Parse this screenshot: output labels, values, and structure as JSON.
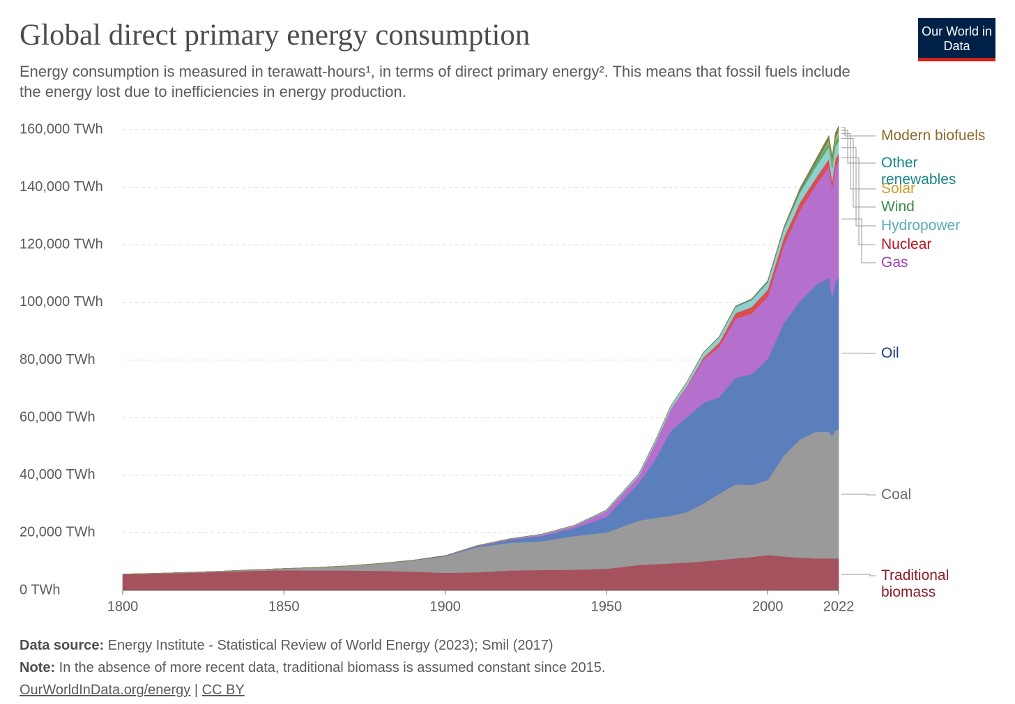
{
  "chart_data": {
    "type": "stacked_area",
    "title": "Global direct primary energy consumption",
    "subtitle": "Energy consumption is measured in terawatt-hours¹, in terms of direct primary energy². This means that fossil fuels include the energy lost due to inefficiencies in energy production.",
    "logo": "Our World in Data",
    "source_label": "Data source:",
    "source": "Energy Institute - Statistical Review of World Energy (2023); Smil (2017)",
    "note_label": "Note:",
    "note": "In the absence of more recent data, traditional biomass is assumed constant since 2015.",
    "link": "OurWorldInData.org/energy",
    "separator": "|",
    "license": "CC BY",
    "x": [
      1800,
      1810,
      1820,
      1830,
      1840,
      1850,
      1860,
      1870,
      1880,
      1890,
      1900,
      1910,
      1920,
      1930,
      1940,
      1950,
      1960,
      1965,
      1970,
      1975,
      1980,
      1985,
      1990,
      1995,
      2000,
      2005,
      2010,
      2015,
      2019,
      2020,
      2021,
      2022
    ],
    "xlim": [
      1800,
      2022
    ],
    "xticks": [
      1800,
      1850,
      1900,
      1950,
      2000,
      2022
    ],
    "ylim": [
      0,
      160000
    ],
    "yticks": [
      {
        "value": 0,
        "label": "0 TWh"
      },
      {
        "value": 20000,
        "label": "20,000 TWh"
      },
      {
        "value": 40000,
        "label": "40,000 TWh"
      },
      {
        "value": 60000,
        "label": "60,000 TWh"
      },
      {
        "value": 80000,
        "label": "80,000 TWh"
      },
      {
        "value": 100000,
        "label": "100,000 TWh"
      },
      {
        "value": 120000,
        "label": "120,000 TWh"
      },
      {
        "value": 140000,
        "label": "140,000 TWh"
      },
      {
        "value": 160000,
        "label": "160,000 TWh"
      }
    ],
    "grid": true,
    "series": [
      {
        "name": "Traditional biomass",
        "color": "#a5525e",
        "label_color": "#8c1c2a",
        "values": [
          5556,
          5800,
          6100,
          6400,
          6800,
          7000,
          6900,
          6900,
          6800,
          6500,
          6100,
          6300,
          6900,
          7100,
          7200,
          7500,
          8800,
          9100,
          9400,
          9700,
          10100,
          10600,
          11100,
          11600,
          12300,
          11800,
          11400,
          11100,
          11100,
          11100,
          11100,
          11100
        ]
      },
      {
        "name": "Coal",
        "color": "#9a9a9a",
        "label_color": "#6b6b6b",
        "values": [
          97,
          128,
          153,
          264,
          356,
          569,
          1061,
          1642,
          2542,
          3856,
          5728,
          8700,
          9600,
          10000,
          11700,
          12600,
          15400,
          16100,
          16500,
          17500,
          20000,
          23000,
          25700,
          25000,
          26000,
          35000,
          41000,
          44000,
          44000,
          42500,
          44500,
          44600
        ]
      },
      {
        "name": "Oil",
        "color": "#5b7ebd",
        "label_color": "#1c3c7c",
        "values": [
          0,
          0,
          0,
          0,
          0,
          0,
          0,
          6,
          33,
          89,
          181,
          380,
          1100,
          1800,
          2700,
          5400,
          13000,
          20000,
          29500,
          33000,
          35000,
          33500,
          37000,
          38500,
          42000,
          46000,
          48000,
          51000,
          53500,
          48000,
          51500,
          53300
        ]
      },
      {
        "name": "Gas",
        "color": "#b56fcd",
        "label_color": "#9b3fb0",
        "values": [
          0,
          0,
          0,
          0,
          0,
          0,
          0,
          0,
          10,
          30,
          64,
          150,
          230,
          500,
          800,
          2100,
          2500,
          5500,
          7500,
          10500,
          15000,
          17500,
          20500,
          21000,
          21600,
          27000,
          31600,
          34700,
          38500,
          38000,
          40000,
          40000
        ]
      },
      {
        "name": "Nuclear",
        "color": "#d94f4f",
        "label_color": "#b8141c",
        "values": [
          0,
          0,
          0,
          0,
          0,
          0,
          0,
          0,
          0,
          0,
          0,
          0,
          0,
          0,
          0,
          0,
          0,
          25,
          80,
          380,
          700,
          1500,
          2000,
          2300,
          2500,
          2700,
          2700,
          2500,
          2700,
          2600,
          2800,
          2600
        ]
      },
      {
        "name": "Hydropower",
        "color": "#8ecfd0",
        "label_color": "#5aabb8",
        "values": [
          0,
          0,
          0,
          0,
          0,
          0,
          0,
          0,
          0,
          0,
          0,
          50,
          100,
          150,
          200,
          330,
          690,
          900,
          1150,
          1400,
          1700,
          1900,
          2100,
          2400,
          2600,
          2900,
          3400,
          3900,
          4200,
          4300,
          4300,
          4300
        ]
      },
      {
        "name": "Wind",
        "color": "#5aa85a",
        "label_color": "#3b8a48",
        "values": [
          0,
          0,
          0,
          0,
          0,
          0,
          0,
          0,
          0,
          0,
          0,
          0,
          0,
          0,
          0,
          0,
          0,
          0,
          0,
          0,
          0,
          0,
          0,
          8,
          31,
          104,
          342,
          831,
          1420,
          1590,
          1850,
          2100
        ]
      },
      {
        "name": "Solar",
        "color": "#c9b84f",
        "label_color": "#c5a12a",
        "values": [
          0,
          0,
          0,
          0,
          0,
          0,
          0,
          0,
          0,
          0,
          0,
          0,
          0,
          0,
          0,
          0,
          0,
          0,
          0,
          0,
          0,
          0,
          0,
          0,
          0,
          4,
          32,
          256,
          704,
          853,
          1030,
          1300
        ]
      },
      {
        "name": "Other renewables",
        "color": "#3d9b95",
        "label_color": "#1a8585",
        "values": [
          0,
          0,
          0,
          0,
          0,
          0,
          0,
          0,
          0,
          0,
          0,
          0,
          0,
          0,
          0,
          0,
          0,
          20,
          40,
          50,
          100,
          180,
          270,
          340,
          400,
          470,
          560,
          700,
          760,
          790,
          830,
          860
        ]
      },
      {
        "name": "Modern biofuels",
        "color": "#8d7b3e",
        "label_color": "#8b6a2b",
        "values": [
          0,
          0,
          0,
          0,
          0,
          0,
          0,
          0,
          0,
          0,
          0,
          0,
          0,
          0,
          0,
          0,
          0,
          0,
          0,
          0,
          0,
          0,
          73,
          90,
          110,
          220,
          660,
          880,
          1100,
          1050,
          1100,
          1150
        ]
      }
    ]
  }
}
